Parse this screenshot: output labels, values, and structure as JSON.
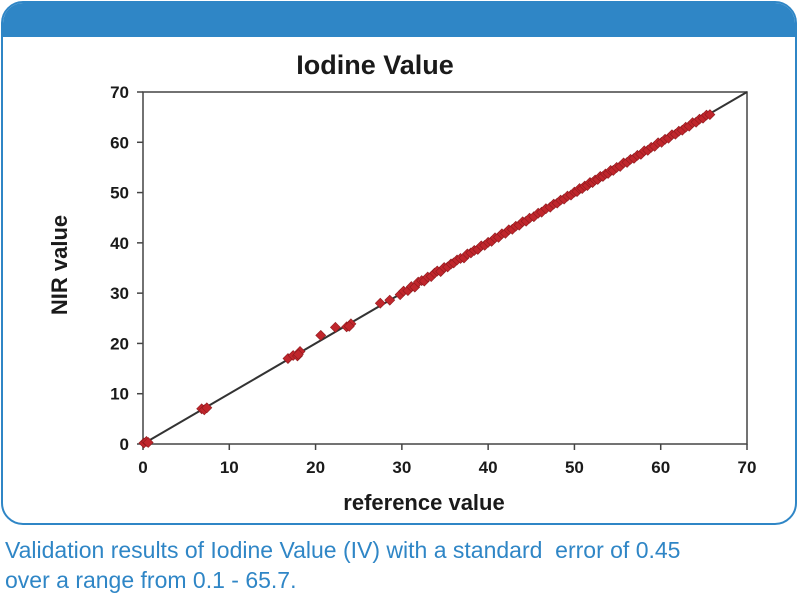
{
  "chart_data": {
    "type": "scatter",
    "title": "Iodine Value",
    "xlabel": "reference value",
    "ylabel": "NIR value",
    "xlim": [
      0,
      70
    ],
    "ylim": [
      0,
      70
    ],
    "xticks": [
      0,
      10,
      20,
      30,
      40,
      50,
      60,
      70
    ],
    "yticks": [
      0,
      10,
      20,
      30,
      40,
      50,
      60,
      70
    ],
    "grid": false,
    "legend": "none",
    "reference_line": {
      "x": [
        0,
        70
      ],
      "y": [
        0,
        70
      ]
    },
    "marker_color": "#c0262c",
    "line_color": "#333333",
    "series": [
      {
        "x": [
          0.1,
          0.4,
          0.6,
          6.8,
          7.1,
          7.4,
          16.8,
          17.4,
          17.9,
          18.2,
          18.0,
          20.6,
          22.3,
          23.6,
          24.1,
          23.9,
          27.5,
          28.6,
          29.8,
          30.2,
          30.7,
          31.1,
          31.5,
          31.9,
          32.3,
          32.6,
          33.0,
          33.4,
          33.8,
          34.1,
          34.5,
          34.9,
          35.3,
          35.7,
          36.0,
          36.4,
          36.8,
          37.2,
          37.6,
          38.0,
          38.4,
          38.8,
          39.2,
          39.6,
          40.0,
          40.4,
          40.8,
          41.2,
          41.6,
          42.0,
          42.4,
          42.8,
          43.2,
          43.6,
          44.0,
          44.4,
          44.8,
          45.3,
          45.8,
          46.2,
          46.7,
          47.2,
          47.6,
          48.0,
          48.4,
          48.8,
          49.2,
          49.6,
          50.0,
          50.3,
          50.6,
          50.9,
          51.2,
          51.5,
          51.8,
          52.1,
          52.4,
          52.7,
          53.0,
          53.3,
          53.6,
          53.9,
          54.2,
          54.5,
          54.9,
          55.3,
          55.7,
          56.1,
          56.5,
          56.9,
          57.3,
          57.7,
          58.1,
          58.5,
          58.9,
          59.3,
          59.7,
          60.1,
          60.5,
          60.9,
          61.3,
          61.7,
          62.1,
          62.5,
          62.9,
          63.3,
          63.7,
          64.1,
          64.5,
          64.9,
          65.3,
          65.7
        ],
        "y": [
          0.2,
          0.5,
          0.3,
          7.0,
          6.8,
          7.2,
          17.0,
          17.6,
          17.5,
          18.4,
          17.8,
          21.6,
          23.2,
          23.3,
          23.9,
          23.4,
          28.0,
          28.6,
          29.7,
          30.4,
          30.5,
          31.3,
          31.2,
          32.2,
          32.5,
          32.4,
          33.2,
          33.3,
          34.0,
          34.4,
          34.3,
          35.1,
          35.2,
          35.8,
          36.0,
          36.6,
          36.9,
          37.0,
          37.8,
          38.0,
          38.5,
          38.7,
          39.4,
          39.5,
          40.1,
          40.3,
          41.0,
          41.1,
          41.8,
          41.9,
          42.6,
          42.7,
          43.3,
          43.5,
          44.2,
          44.3,
          44.9,
          45.2,
          45.9,
          46.1,
          46.8,
          47.1,
          47.7,
          47.9,
          48.5,
          48.7,
          49.3,
          49.5,
          50.1,
          50.2,
          50.8,
          50.8,
          51.3,
          51.4,
          52.0,
          52.0,
          52.5,
          52.6,
          53.2,
          53.2,
          53.7,
          53.8,
          54.4,
          54.4,
          55.0,
          55.2,
          55.9,
          56.0,
          56.6,
          56.8,
          57.4,
          57.6,
          58.3,
          58.4,
          59.0,
          59.2,
          59.9,
          60.0,
          60.6,
          60.8,
          61.5,
          61.6,
          62.2,
          62.4,
          63.0,
          63.2,
          63.9,
          64.0,
          64.6,
          64.8,
          65.4,
          65.5
        ]
      }
    ]
  },
  "caption": {
    "line1": "Validation results of Iodine Value (IV) with a standard  error of 0.45",
    "line2": "over a range from 0.1 - 65.7."
  }
}
